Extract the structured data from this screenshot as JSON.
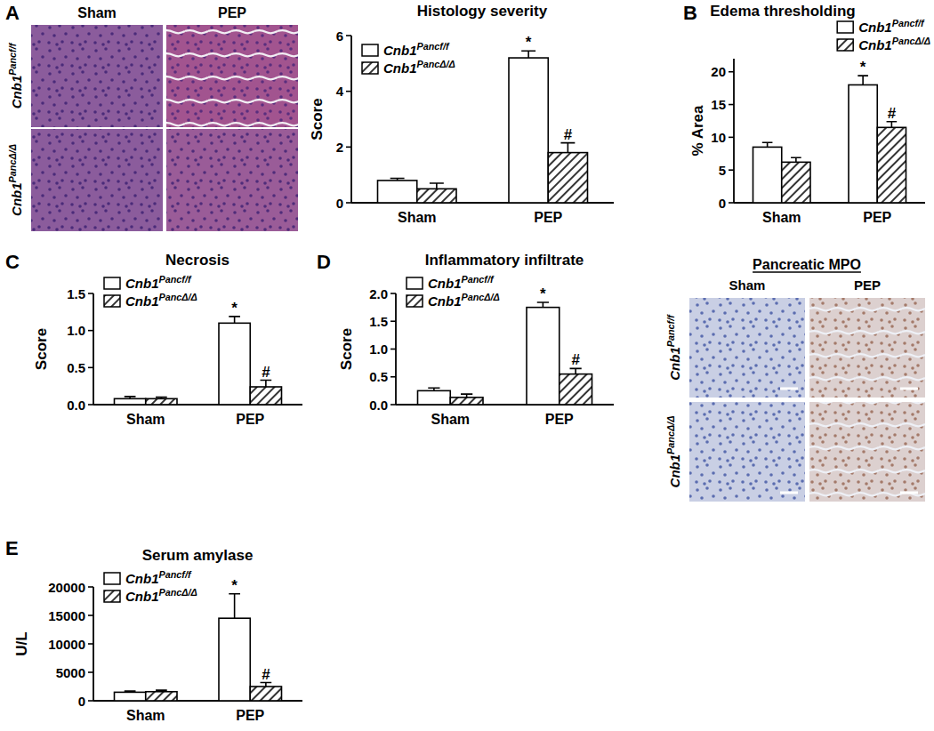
{
  "figure": {
    "panel_labels": [
      "A",
      "B",
      "C",
      "D",
      "E"
    ],
    "histology": {
      "columns": [
        "Sham",
        "PEP"
      ],
      "rows": [
        "Cnb1Pancf/f",
        "Cnb1PancΔ/Δ"
      ]
    },
    "mpo": {
      "title": "Pancreatic MPO",
      "columns": [
        "Sham",
        "PEP"
      ],
      "rows": [
        "Cnb1Pancf/f",
        "Cnb1PancΔ/Δ"
      ]
    }
  },
  "chart_data": [
    {
      "type": "bar",
      "title": "Histology severity",
      "ylabel": "Score",
      "categories": [
        "Sham",
        "PEP"
      ],
      "series": [
        {
          "name": "Cnb1Pancf/f",
          "color": "#ffffff",
          "values": [
            0.8,
            5.2
          ],
          "errors": [
            0.08,
            0.25
          ],
          "significance": [
            null,
            "*"
          ]
        },
        {
          "name": "Cnb1PancΔ/Δ",
          "color": "#ffffff",
          "values": [
            0.5,
            1.8
          ],
          "errors": [
            0.2,
            0.35
          ],
          "significance": [
            null,
            "#"
          ]
        }
      ],
      "ylim": [
        0,
        6
      ],
      "yticks": [
        0,
        2,
        4,
        6
      ],
      "grid": false,
      "legend": "upper left"
    },
    {
      "type": "bar",
      "title": "Edema thresholding",
      "ylabel": "% Area",
      "categories": [
        "Sham",
        "PEP"
      ],
      "series": [
        {
          "name": "Cnb1Pancf/f",
          "color": "#ffffff",
          "values": [
            8.5,
            18
          ],
          "errors": [
            0.7,
            1.4
          ],
          "significance": [
            null,
            "*"
          ]
        },
        {
          "name": "Cnb1PancΔ/Δ",
          "color": "#ffffff",
          "values": [
            6.2,
            11.5
          ],
          "errors": [
            0.7,
            0.9
          ],
          "significance": [
            null,
            "#"
          ]
        }
      ],
      "ylim": [
        0,
        22
      ],
      "yticks": [
        0,
        5,
        10,
        15,
        20
      ],
      "grid": false,
      "legend": "upper right"
    },
    {
      "type": "bar",
      "title": "Necrosis",
      "ylabel": "Score",
      "categories": [
        "Sham",
        "PEP"
      ],
      "series": [
        {
          "name": "Cnb1Pancf/f",
          "color": "#ffffff",
          "values": [
            0.08,
            1.1
          ],
          "errors": [
            0.03,
            0.09
          ],
          "significance": [
            null,
            "*"
          ]
        },
        {
          "name": "Cnb1PancΔ/Δ",
          "color": "#ffffff",
          "values": [
            0.08,
            0.24
          ],
          "errors": [
            0.02,
            0.09
          ],
          "significance": [
            null,
            "#"
          ]
        }
      ],
      "ylim": [
        0,
        1.5
      ],
      "yticks": [
        {
          "value": 0,
          "label": "0.0"
        },
        0.5,
        {
          "value": 1,
          "label": "1.0"
        },
        1.5
      ],
      "grid": false,
      "legend": "upper left"
    },
    {
      "type": "bar",
      "title": "Inflammatory infiltrate",
      "ylabel": "Score",
      "categories": [
        "Sham",
        "PEP"
      ],
      "series": [
        {
          "name": "Cnb1Pancf/f",
          "color": "#ffffff",
          "values": [
            0.25,
            1.75
          ],
          "errors": [
            0.05,
            0.09
          ],
          "significance": [
            null,
            "*"
          ]
        },
        {
          "name": "Cnb1PancΔ/Δ",
          "color": "#ffffff",
          "values": [
            0.13,
            0.55
          ],
          "errors": [
            0.06,
            0.1
          ],
          "significance": [
            null,
            "#"
          ]
        }
      ],
      "ylim": [
        0,
        2
      ],
      "yticks": [
        {
          "value": 0,
          "label": "0.0"
        },
        0.5,
        {
          "value": 1,
          "label": "1.0"
        },
        1.5,
        {
          "value": 2,
          "label": "2.0"
        }
      ],
      "grid": false,
      "legend": "upper left"
    },
    {
      "type": "bar",
      "title": "Serum amylase",
      "ylabel": "U/L",
      "categories": [
        "Sham",
        "PEP"
      ],
      "series": [
        {
          "name": "Cnb1Pancf/f",
          "color": "#ffffff",
          "values": [
            1500,
            14500
          ],
          "errors": [
            200,
            4300
          ],
          "significance": [
            null,
            "*"
          ]
        },
        {
          "name": "Cnb1PancΔ/Δ",
          "color": "#ffffff",
          "values": [
            1600,
            2500
          ],
          "errors": [
            250,
            700
          ],
          "significance": [
            null,
            "#"
          ]
        }
      ],
      "ylim": [
        0,
        20000
      ],
      "yticks": [
        0,
        5000,
        10000,
        15000,
        20000
      ],
      "grid": false,
      "legend": "upper left"
    }
  ]
}
